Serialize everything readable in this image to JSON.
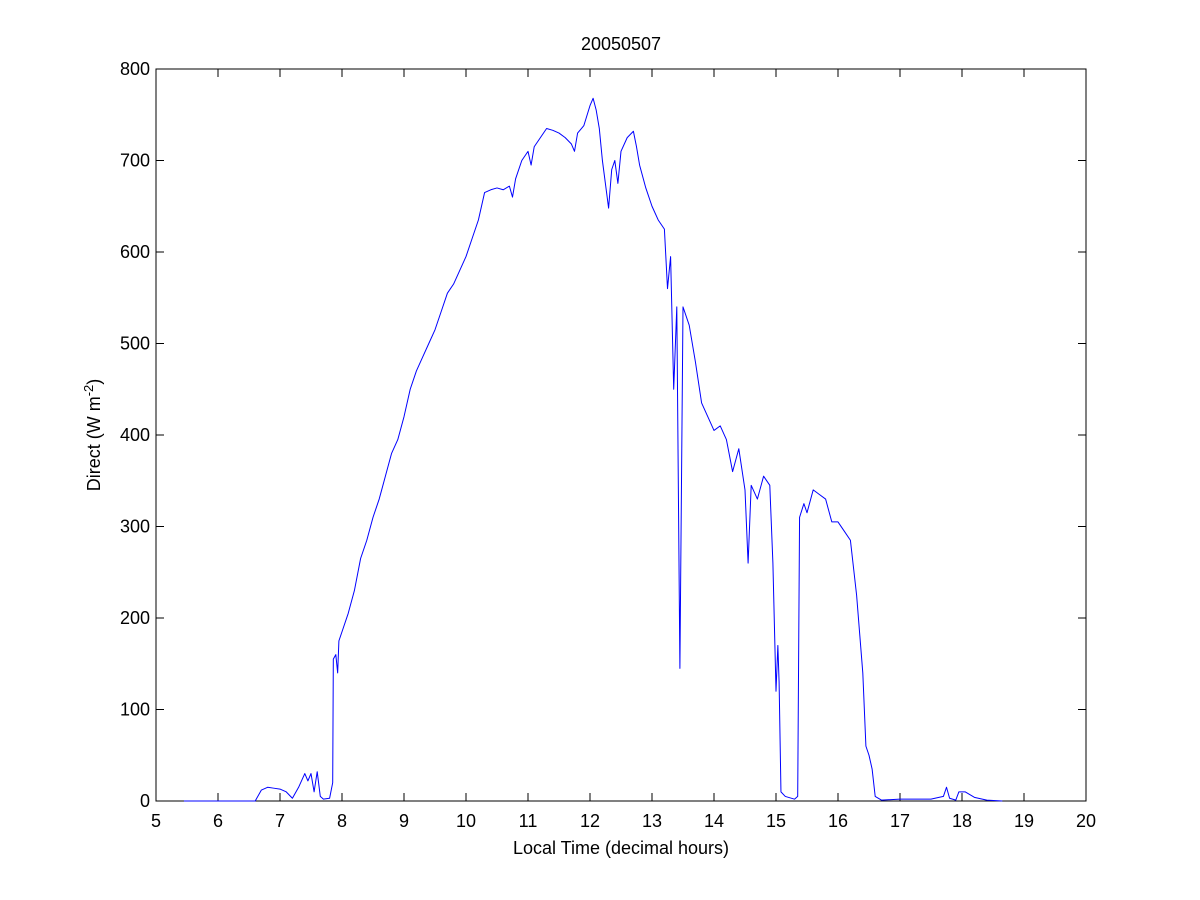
{
  "chart_data": {
    "type": "line",
    "title": "20050507",
    "xlabel": "Local Time (decimal hours)",
    "ylabel": [
      "Direct (W m",
      "-2",
      ")"
    ],
    "xlim": [
      5,
      20
    ],
    "ylim": [
      0,
      800
    ],
    "xticks": [
      5,
      6,
      7,
      8,
      9,
      10,
      11,
      12,
      13,
      14,
      15,
      16,
      17,
      18,
      19,
      20
    ],
    "yticks": [
      0,
      100,
      200,
      300,
      400,
      500,
      600,
      700,
      800
    ],
    "grid": false,
    "box": true,
    "x": [
      5.45,
      6.6,
      6.7,
      6.8,
      6.9,
      7.0,
      7.1,
      7.2,
      7.3,
      7.4,
      7.45,
      7.5,
      7.55,
      7.6,
      7.65,
      7.7,
      7.8,
      7.85,
      7.86,
      7.9,
      7.93,
      7.95,
      8.0,
      8.1,
      8.2,
      8.3,
      8.4,
      8.5,
      8.6,
      8.7,
      8.8,
      8.9,
      9.0,
      9.1,
      9.2,
      9.3,
      9.4,
      9.5,
      9.6,
      9.7,
      9.8,
      9.9,
      10.0,
      10.1,
      10.2,
      10.3,
      10.4,
      10.5,
      10.6,
      10.7,
      10.75,
      10.8,
      10.9,
      11.0,
      11.05,
      11.1,
      11.2,
      11.3,
      11.4,
      11.5,
      11.6,
      11.7,
      11.75,
      11.8,
      11.9,
      12.0,
      12.05,
      12.1,
      12.15,
      12.2,
      12.3,
      12.35,
      12.4,
      12.45,
      12.5,
      12.6,
      12.7,
      12.75,
      12.8,
      12.9,
      13.0,
      13.1,
      13.2,
      13.25,
      13.3,
      13.35,
      13.4,
      13.45,
      13.5,
      13.6,
      13.7,
      13.8,
      13.9,
      14.0,
      14.1,
      14.2,
      14.3,
      14.4,
      14.5,
      14.55,
      14.6,
      14.7,
      14.8,
      14.9,
      14.95,
      15.0,
      15.03,
      15.05,
      15.08,
      15.15,
      15.3,
      15.35,
      15.38,
      15.45,
      15.5,
      15.6,
      15.7,
      15.8,
      15.9,
      16.0,
      16.1,
      16.2,
      16.3,
      16.4,
      16.45,
      16.5,
      16.55,
      16.6,
      16.7,
      17.0,
      17.5,
      17.7,
      17.75,
      17.8,
      17.9,
      17.95,
      18.05,
      18.2,
      18.4,
      18.65
    ],
    "series": [
      {
        "color": "#0000ff",
        "values": [
          0,
          0,
          12,
          15,
          14,
          13,
          10,
          3,
          15,
          30,
          22,
          30,
          10,
          32,
          5,
          2,
          3,
          20,
          155,
          160,
          140,
          175,
          185,
          205,
          230,
          265,
          285,
          310,
          330,
          355,
          380,
          395,
          420,
          450,
          470,
          485,
          500,
          515,
          535,
          555,
          565,
          580,
          595,
          615,
          635,
          665,
          668,
          670,
          668,
          672,
          660,
          680,
          700,
          710,
          695,
          715,
          725,
          735,
          733,
          730,
          725,
          718,
          710,
          730,
          738,
          760,
          768,
          755,
          735,
          700,
          648,
          690,
          700,
          675,
          710,
          725,
          732,
          715,
          695,
          670,
          650,
          635,
          625,
          560,
          595,
          450,
          540,
          145,
          540,
          520,
          480,
          435,
          420,
          405,
          410,
          395,
          360,
          385,
          340,
          260,
          345,
          330,
          355,
          345,
          260,
          120,
          170,
          130,
          10,
          5,
          2,
          5,
          310,
          325,
          315,
          340,
          335,
          330,
          305,
          305,
          295,
          285,
          225,
          140,
          60,
          50,
          35,
          5,
          1,
          2,
          2,
          5,
          15,
          3,
          1,
          10,
          10,
          4,
          1,
          0
        ]
      }
    ]
  }
}
